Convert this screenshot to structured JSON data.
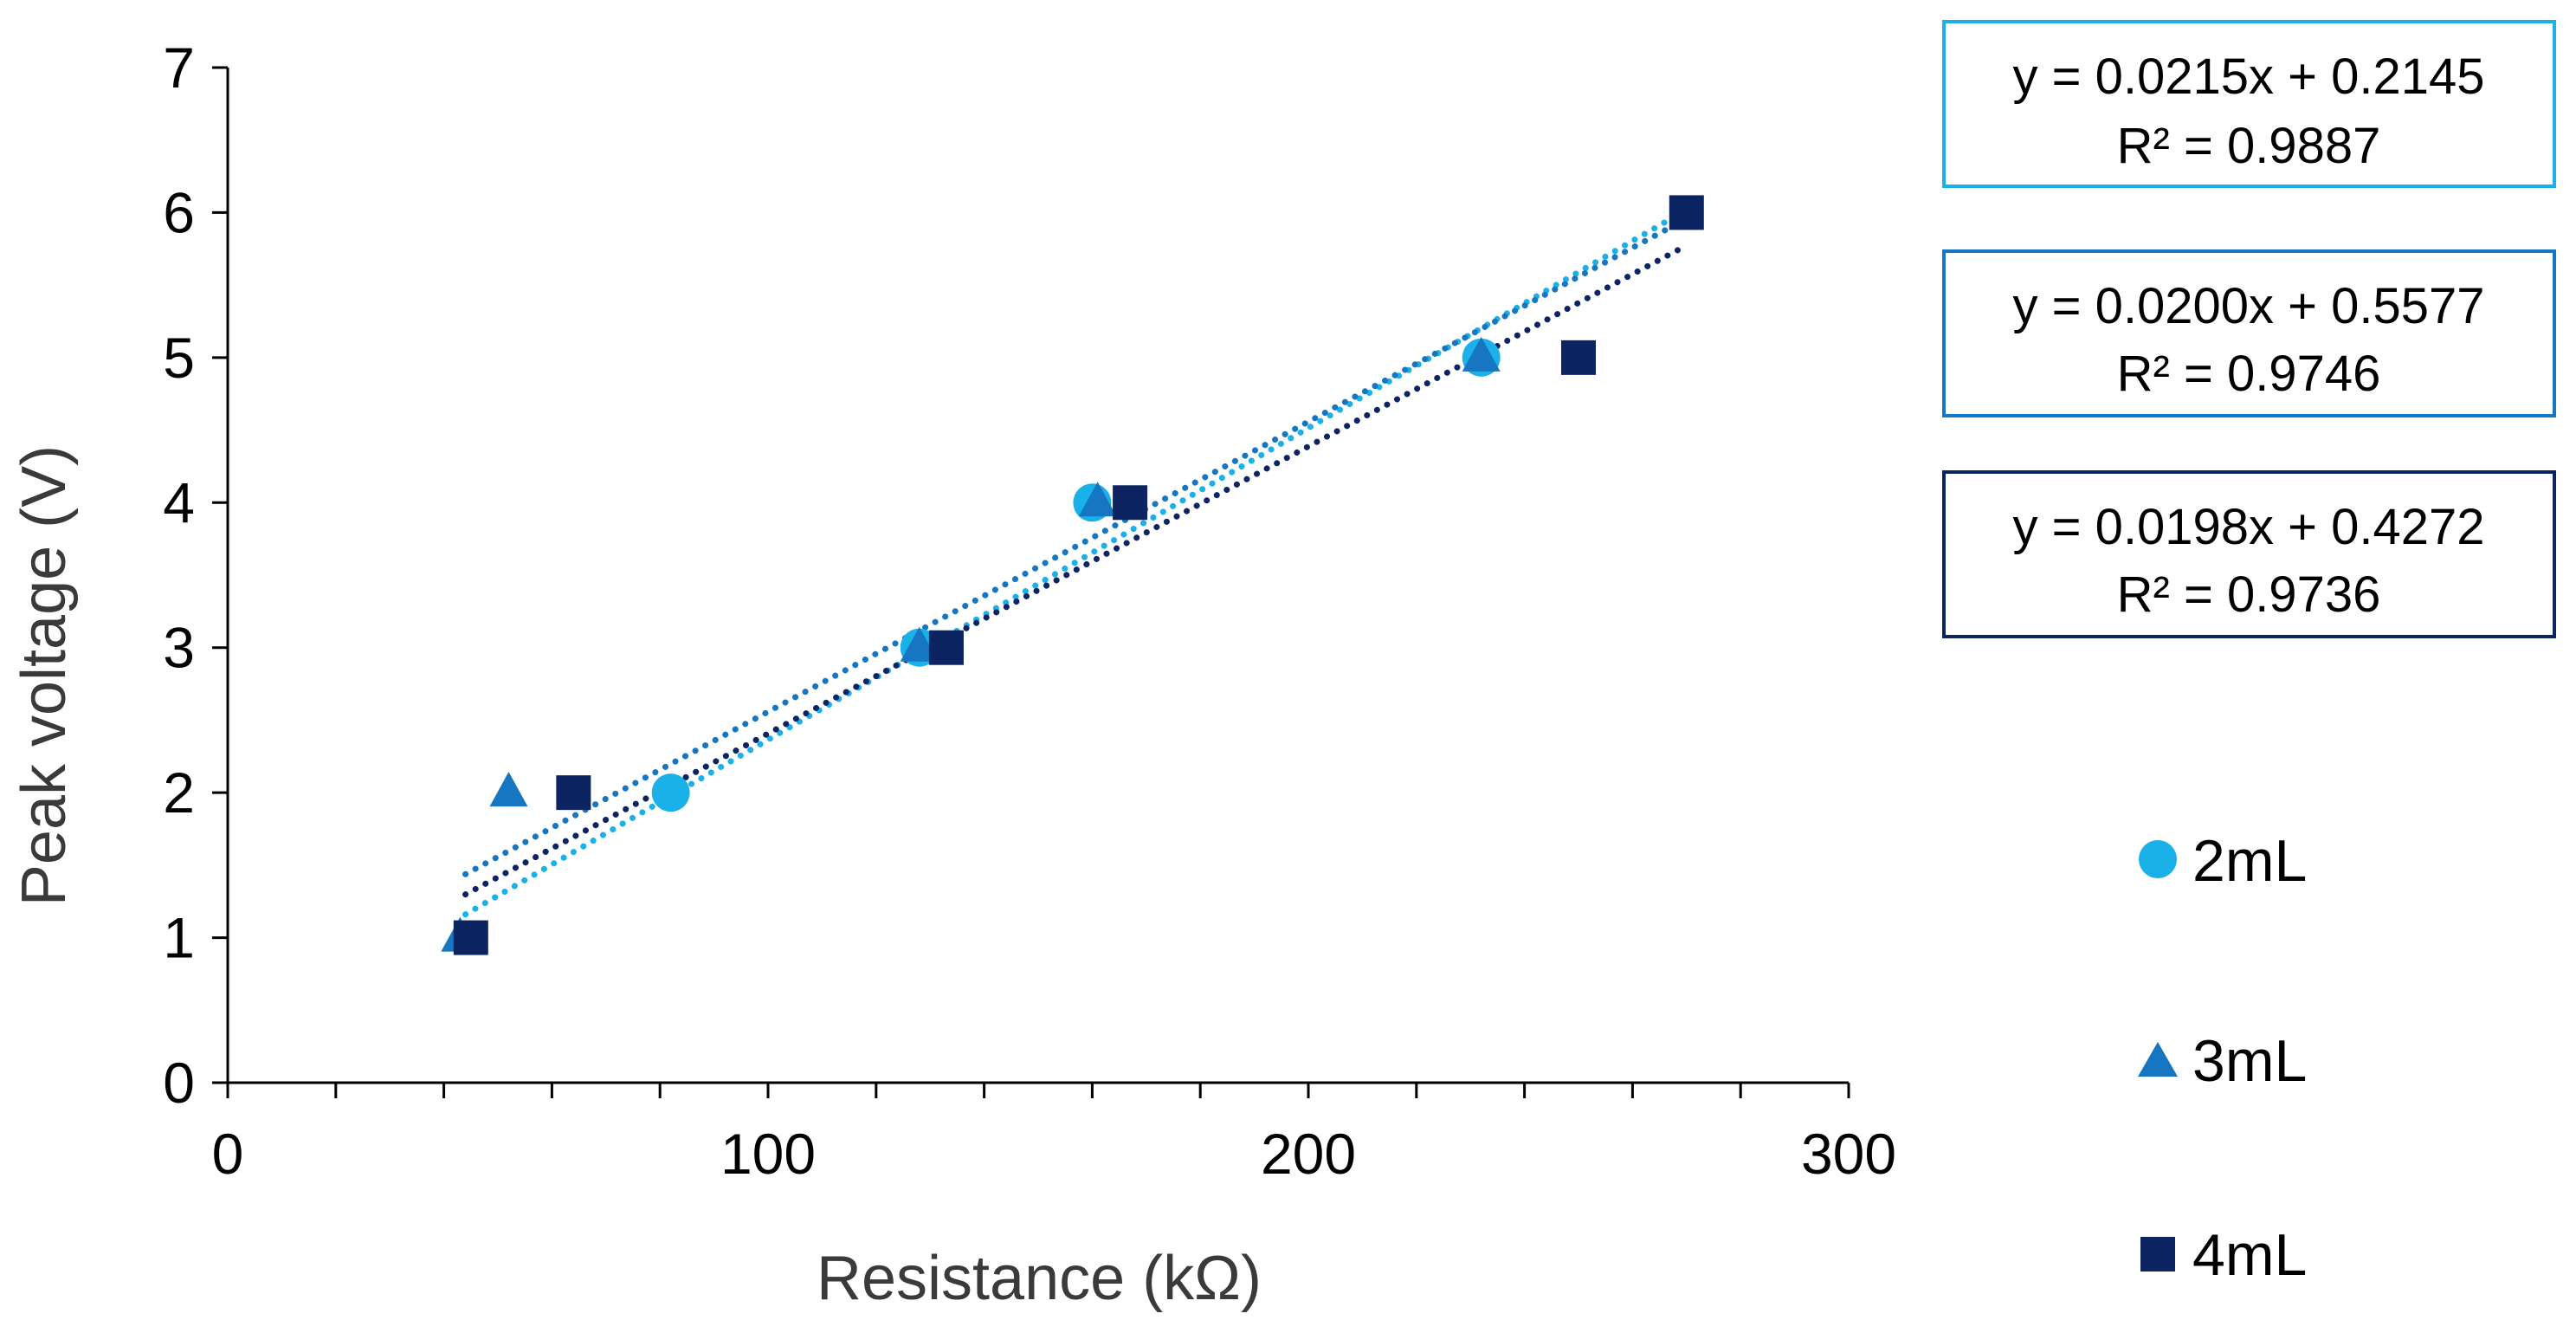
{
  "chart_data": {
    "type": "scatter",
    "xlabel": "Resistance (kΩ)",
    "ylabel": "Peak voltage (V)",
    "xlim": [
      0,
      300
    ],
    "ylim": [
      0,
      7
    ],
    "xticks": [
      0,
      100,
      200,
      300
    ],
    "yticks": [
      0,
      1,
      2,
      3,
      4,
      5,
      6,
      7
    ],
    "grid": false,
    "legend_position": "right",
    "series": [
      {
        "name": "2mL",
        "marker": "circle",
        "color": "#1ab0e8",
        "points": [
          [
            82,
            2
          ],
          [
            128,
            3
          ],
          [
            160,
            4
          ],
          [
            232,
            5
          ]
        ],
        "trendline": {
          "type": "linear",
          "x_range": [
            44,
            270
          ],
          "slope": 0.0215,
          "intercept": 0.2145,
          "equation": "y = 0.0215x + 0.2145",
          "r2": "R² = 0.9887"
        }
      },
      {
        "name": "3mL",
        "marker": "triangle",
        "color": "#1776c1",
        "points": [
          [
            43,
            1
          ],
          [
            52,
            2
          ],
          [
            128,
            3
          ],
          [
            161,
            4
          ],
          [
            232,
            5
          ]
        ],
        "trendline": {
          "type": "linear",
          "x_range": [
            44,
            270
          ],
          "slope": 0.02,
          "intercept": 0.5577,
          "equation": "y = 0.0200x + 0.5577",
          "r2": "R² = 0.9746"
        }
      },
      {
        "name": "4mL",
        "marker": "square",
        "color": "#0c2461",
        "points": [
          [
            45,
            1
          ],
          [
            64,
            2
          ],
          [
            133,
            3
          ],
          [
            167,
            4
          ],
          [
            250,
            5
          ],
          [
            270,
            6
          ]
        ],
        "trendline": {
          "type": "linear",
          "x_range": [
            44,
            270
          ],
          "slope": 0.0198,
          "intercept": 0.4272,
          "equation": "y = 0.0198x + 0.4272",
          "r2": "R² = 0.9736"
        }
      }
    ]
  }
}
